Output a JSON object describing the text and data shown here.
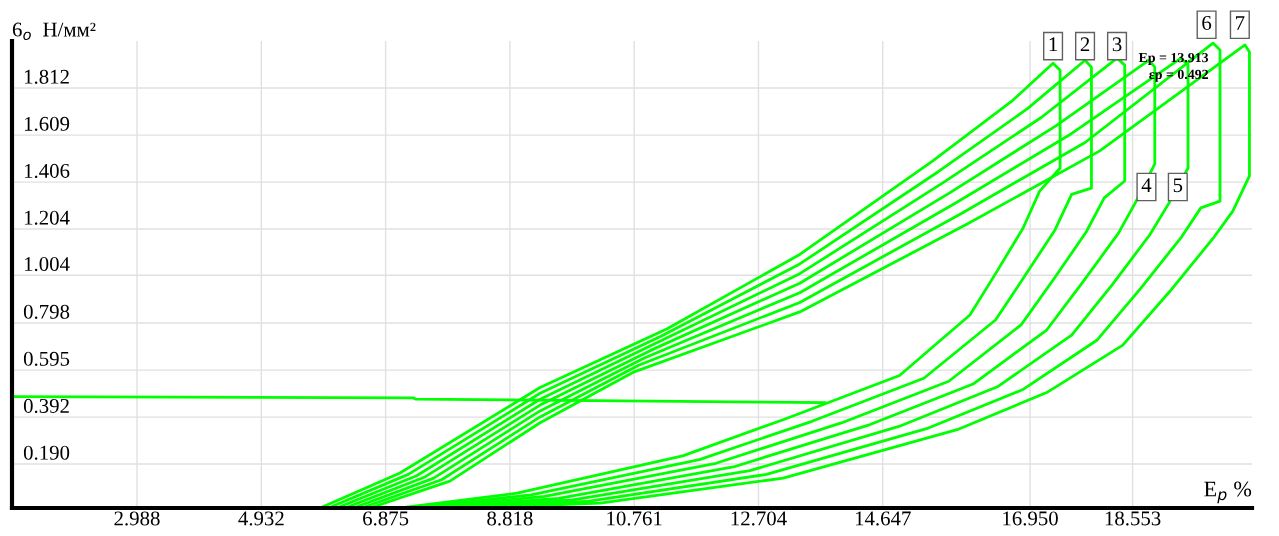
{
  "chart_data": {
    "type": "line",
    "xlabel": "E$_{p}$ %",
    "ylabel": "6$_{o}$  Н/мм²",
    "xlim": [
      1.034,
      20.42
    ],
    "ylim": [
      0,
      2.015
    ],
    "xticks": [
      2.988,
      4.932,
      6.875,
      8.818,
      10.761,
      12.704,
      14.647,
      {
        "value": 16.95,
        "label": "16.950"
      },
      18.553
    ],
    "yticks": [
      {
        "value": 0.19,
        "label": "0.190"
      },
      0.392,
      0.595,
      0.798,
      1.004,
      1.204,
      1.406,
      1.609,
      1.812
    ],
    "grid": true,
    "line_style": "solid",
    "marker": "none",
    "series": [
      {
        "color": "#00ff00",
        "x": [
          1.04,
          5.85,
          7.1,
          9.29,
          11.27,
          13.35,
          15.43,
          16.68,
          17.31,
          17.42,
          17.42,
          17.1,
          16.84,
          16.43,
          16.01,
          14.91,
          13.09,
          11.52,
          8.93,
          7.1
        ],
        "values": [
          0,
          0,
          0.151,
          0.52,
          0.772,
          1.094,
          1.498,
          1.759,
          1.919,
          1.889,
          1.467,
          1.367,
          1.207,
          1.02,
          0.833,
          0.572,
          0.381,
          0.225,
          0.064,
          0
        ]
      },
      {
        "color": "#00ff00",
        "x": [
          5.98,
          7.23,
          9.29,
          11.18,
          13.35,
          15.52,
          16.91,
          17.81,
          17.91,
          17.91,
          17.6,
          17.34,
          16.88,
          16.41,
          15.29,
          13.54,
          11.78,
          9.15,
          7.28
        ],
        "values": [
          0,
          0.145,
          0.495,
          0.741,
          1.053,
          1.452,
          1.723,
          1.932,
          1.902,
          1.38,
          1.353,
          1.2,
          1.006,
          0.811,
          0.56,
          0.374,
          0.209,
          0.057,
          0
        ]
      },
      {
        "color": "#00ff00",
        "x": [
          6.11,
          7.36,
          9.29,
          11.09,
          13.35,
          15.61,
          17.13,
          18.31,
          18.43,
          18.43,
          18.11,
          17.83,
          17.33,
          16.81,
          15.68,
          14.0,
          12.04,
          9.36,
          7.46
        ],
        "values": [
          0,
          0.139,
          0.469,
          0.71,
          1.011,
          1.407,
          1.686,
          1.941,
          1.911,
          1.411,
          1.338,
          1.192,
          0.991,
          0.79,
          0.547,
          0.367,
          0.193,
          0.05,
          0
        ]
      },
      {
        "color": "#00ff00",
        "x": [
          6.24,
          7.49,
          9.29,
          11.01,
          13.35,
          15.7,
          17.36,
          18.81,
          18.9,
          18.9,
          18.61,
          18.33,
          17.78,
          17.21,
          16.06,
          14.45,
          12.31,
          9.58,
          7.65
        ],
        "values": [
          0,
          0.134,
          0.444,
          0.679,
          0.97,
          1.361,
          1.65,
          1.932,
          1.902,
          1.485,
          1.324,
          1.185,
          0.977,
          0.768,
          0.535,
          0.36,
          0.177,
          0.042,
          0
        ]
      },
      {
        "color": "#00ff00",
        "x": [
          6.37,
          7.62,
          9.29,
          10.92,
          13.35,
          15.78,
          17.59,
          19.31,
          19.42,
          19.42,
          19.11,
          18.82,
          18.23,
          17.6,
          16.44,
          14.9,
          12.57,
          9.8,
          7.83
        ],
        "values": [
          0,
          0.128,
          0.419,
          0.647,
          0.929,
          1.315,
          1.614,
          1.941,
          1.911,
          1.467,
          1.31,
          1.178,
          0.962,
          0.746,
          0.523,
          0.352,
          0.161,
          0.035,
          0
        ]
      },
      {
        "color": "#00ff00",
        "x": [
          6.5,
          7.75,
          9.29,
          10.83,
          13.35,
          15.87,
          17.81,
          19.81,
          19.92,
          19.92,
          19.62,
          19.32,
          18.68,
          18.0,
          16.83,
          15.36,
          12.83,
          10.01,
          8.01
        ],
        "values": [
          0,
          0.122,
          0.393,
          0.616,
          0.887,
          1.27,
          1.577,
          2.006,
          1.976,
          1.324,
          1.295,
          1.17,
          0.948,
          0.725,
          0.51,
          0.345,
          0.145,
          0.028,
          0
        ]
      },
      {
        "color": "#00ff00",
        "x": [
          6.63,
          7.88,
          9.29,
          10.74,
          13.35,
          15.96,
          18.04,
          20.31,
          20.38,
          20.38,
          20.12,
          19.81,
          19.13,
          18.4,
          17.21,
          15.81,
          13.09,
          10.23,
          8.19
        ],
        "values": [
          0,
          0.116,
          0.368,
          0.585,
          0.846,
          1.224,
          1.541,
          1.998,
          1.968,
          1.433,
          1.281,
          1.163,
          0.933,
          0.703,
          0.498,
          0.338,
          0.129,
          0.021,
          0
        ]
      },
      {
        "color": "#00ff00",
        "x": [
          1.04,
          7.3,
          7.35,
          13.74
        ],
        "values": [
          0.481,
          0.475,
          0.47,
          0.455
        ]
      }
    ],
    "annotations": [
      {
        "text": "1",
        "x": 17.31,
        "y": 1.993
      },
      {
        "text": "2",
        "x": 17.81,
        "y": 1.993
      },
      {
        "text": "3",
        "x": 18.31,
        "y": 1.993
      },
      {
        "text": "4",
        "x": 18.77,
        "y": 1.385
      },
      {
        "text": "5",
        "x": 19.26,
        "y": 1.385
      },
      {
        "text": "6",
        "x": 19.71,
        "y": 2.085
      },
      {
        "text": "7",
        "x": 20.23,
        "y": 2.085
      },
      "Ep = 13.913",
      "εp = 0.492"
    ]
  }
}
